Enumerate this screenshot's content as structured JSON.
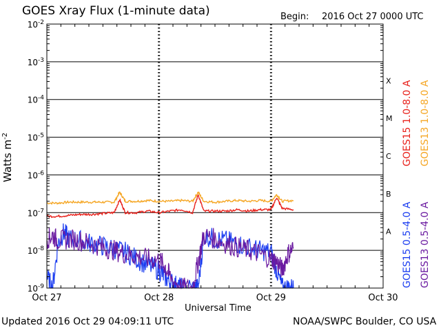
{
  "header": {
    "title": "GOES Xray Flux (1-minute data)",
    "begin_label": "Begin:",
    "begin_value": "2016 Oct 27 0000 UTC"
  },
  "footer": {
    "updated": "Updated 2016 Oct 29 04:09:11 UTC",
    "credit": "NOAA/SWPC Boulder, CO USA"
  },
  "chart_data": {
    "type": "line",
    "title": "GOES Xray Flux (1-minute data)",
    "xlabel": "Universal Time",
    "ylabel": "Watts m",
    "ylabel_sup": "-2",
    "y_scale": "log",
    "ylim": [
      1e-09,
      0.01
    ],
    "xlim_days": [
      0,
      3
    ],
    "x_ticks": [
      "Oct 27",
      "Oct 28",
      "Oct 29",
      "Oct 30"
    ],
    "y_ticks": [
      {
        "base": "10",
        "exp": "-2"
      },
      {
        "base": "10",
        "exp": "-3"
      },
      {
        "base": "10",
        "exp": "-4"
      },
      {
        "base": "10",
        "exp": "-5"
      },
      {
        "base": "10",
        "exp": "-6"
      },
      {
        "base": "10",
        "exp": "-7"
      },
      {
        "base": "10",
        "exp": "-8"
      },
      {
        "base": "10",
        "exp": "-9"
      }
    ],
    "flare_classes": [
      "X",
      "M",
      "C",
      "B",
      "A"
    ],
    "legend": [
      {
        "name": "GOES15 1.0-8.0 A",
        "color": "#e8201a"
      },
      {
        "name": "GOES13 1.0-8.0 A",
        "color": "#f5a623"
      },
      {
        "name": "GOES15 0.5-4.0 A",
        "color": "#1a3cf0"
      },
      {
        "name": "GOES13 0.5-4.0 A",
        "color": "#6a1aa0"
      }
    ],
    "series": [
      {
        "name": "GOES13 1.0-8.0 A",
        "color": "#f5a623",
        "x": [
          0,
          0.1,
          0.2,
          0.3,
          0.4,
          0.5,
          0.6,
          0.65,
          0.7,
          0.8,
          0.9,
          1.0,
          1.1,
          1.2,
          1.3,
          1.35,
          1.4,
          1.5,
          1.6,
          1.7,
          1.8,
          1.9,
          2.0,
          2.05,
          2.1,
          2.2
        ],
        "y": [
          1.8e-07,
          1.8e-07,
          1.9e-07,
          1.9e-07,
          1.9e-07,
          1.9e-07,
          1.9e-07,
          3.5e-07,
          2e-07,
          2e-07,
          2.1e-07,
          2e-07,
          2e-07,
          2.1e-07,
          2e-07,
          3.5e-07,
          2e-07,
          1.9e-07,
          2e-07,
          2.1e-07,
          2e-07,
          2.1e-07,
          2e-07,
          3e-07,
          2e-07,
          2.1e-07
        ]
      },
      {
        "name": "GOES15 1.0-8.0 A",
        "color": "#e8201a",
        "x": [
          0,
          0.1,
          0.2,
          0.3,
          0.4,
          0.5,
          0.6,
          0.65,
          0.7,
          0.8,
          0.9,
          1.0,
          1.1,
          1.2,
          1.3,
          1.35,
          1.4,
          1.5,
          1.6,
          1.7,
          1.8,
          1.9,
          2.0,
          2.05,
          2.1,
          2.2
        ],
        "y": [
          8e-08,
          8e-08,
          8.5e-08,
          9e-08,
          9e-08,
          9.5e-08,
          1e-07,
          2.2e-07,
          1e-07,
          1e-07,
          1.1e-07,
          1e-07,
          1.1e-07,
          1.2e-07,
          1e-07,
          3e-07,
          1.1e-07,
          1.1e-07,
          1.1e-07,
          1.2e-07,
          1.1e-07,
          1.2e-07,
          1.2e-07,
          2.5e-07,
          1.3e-07,
          1.2e-07
        ]
      },
      {
        "name": "GOES15 0.5-4.0 A",
        "color": "#1a3cf0",
        "x": [
          0,
          0.05,
          0.1,
          0.15,
          0.2,
          0.3,
          0.4,
          0.5,
          0.6,
          0.7,
          0.8,
          0.9,
          1.0,
          1.05,
          1.1,
          1.15,
          1.2,
          1.3,
          1.35,
          1.4,
          1.5,
          1.6,
          1.7,
          1.8,
          1.9,
          2.0,
          2.05,
          2.1,
          2.15,
          2.2
        ],
        "y": [
          2e-09,
          1e-09,
          1.5e-08,
          3e-08,
          2e-08,
          1.8e-08,
          1.5e-08,
          1.3e-08,
          1.1e-08,
          9e-09,
          6e-09,
          4e-09,
          3e-09,
          2e-09,
          1.5e-09,
          1.2e-09,
          1e-09,
          1e-09,
          1e-09,
          2.5e-08,
          2e-08,
          1.8e-08,
          1.5e-08,
          1.2e-08,
          1e-08,
          9e-09,
          3e-09,
          1e-09,
          1e-09,
          1e-09
        ]
      },
      {
        "name": "GOES13 0.5-4.0 A",
        "color": "#6a1aa0",
        "x": [
          0,
          0.05,
          0.1,
          0.2,
          0.3,
          0.4,
          0.5,
          0.6,
          0.7,
          0.8,
          0.9,
          1.0,
          1.05,
          1.1,
          1.2,
          1.3,
          1.35,
          1.4,
          1.5,
          1.6,
          1.7,
          1.8,
          1.9,
          2.0,
          2.05,
          2.1,
          2.15,
          2.2
        ],
        "y": [
          2e-08,
          2.5e-08,
          1.8e-08,
          2e-08,
          1.8e-08,
          1.5e-08,
          1.2e-08,
          1e-08,
          8e-09,
          7e-09,
          6e-09,
          5.5e-09,
          4e-09,
          2e-09,
          1e-09,
          1e-09,
          5e-09,
          2.5e-08,
          2e-08,
          1.5e-08,
          1.2e-08,
          1e-08,
          8e-09,
          6e-09,
          5e-09,
          3e-09,
          8e-09,
          1.2e-08
        ]
      }
    ]
  }
}
